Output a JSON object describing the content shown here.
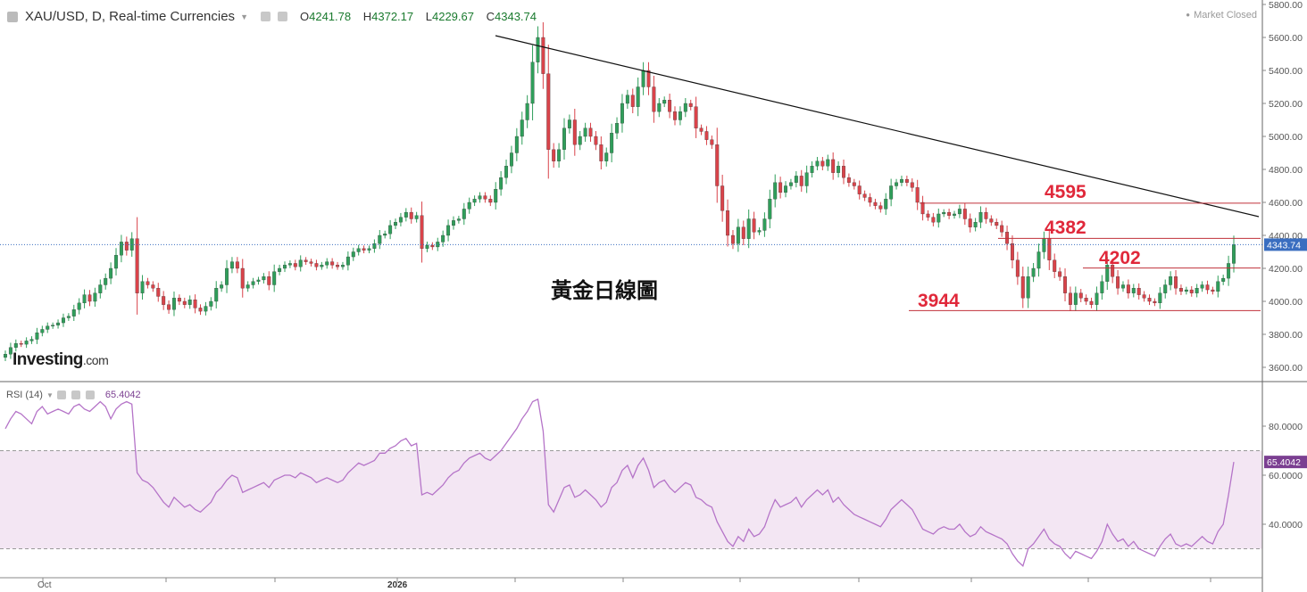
{
  "header": {
    "symbol": "XAU/USD, D, Real-time Currencies",
    "dropdown_icon": "chevron-down-icon",
    "open_label": "O",
    "open": "4241.78",
    "high_label": "H",
    "high": "4372.17",
    "low_label": "L",
    "low": "4229.67",
    "close_label": "C",
    "close": "4343.74"
  },
  "market_status": "Market Closed",
  "watermark": {
    "brand": "Investing",
    "suffix": ".com"
  },
  "annotation_title": "黃金日線圖",
  "levels": [
    {
      "label": "4595",
      "value": 4595
    },
    {
      "label": "4382",
      "value": 4382
    },
    {
      "label": "4202",
      "value": 4202
    },
    {
      "label": "3944",
      "value": 3944
    }
  ],
  "last_price_label": "4343.74",
  "rsi": {
    "label": "RSI (14)",
    "value": "65.4042",
    "last_label": "65.4042"
  },
  "colors": {
    "up": "#2f9e5a",
    "down": "#d9434a",
    "rsi_line": "#b574c8",
    "rsi_band": "#f3e6f3",
    "level_text": "#e0283a",
    "price_line": "#3a6ec0"
  },
  "chart_data": [
    {
      "type": "candlestick",
      "title": "XAU/USD, D, Real-time Currencies",
      "ylim": [
        3500,
        5850
      ],
      "yticks": [
        3600,
        3800,
        4000,
        4200,
        4400,
        4600,
        4800,
        5000,
        5200,
        5400,
        5600,
        5800
      ],
      "ytick_labels": [
        "3600.00",
        "3800.00",
        "4000.00",
        "4200.00",
        "4400.00",
        "4600.00",
        "4800.00",
        "5000.00",
        "5200.00",
        "5400.00",
        "5600.00",
        "5800.00"
      ],
      "xtick_labels": [
        "Oct",
        "2026"
      ],
      "closes": [
        3680,
        3720,
        3745,
        3740,
        3760,
        3770,
        3810,
        3830,
        3850,
        3855,
        3870,
        3900,
        3910,
        3950,
        3990,
        4040,
        4000,
        4050,
        4100,
        4140,
        4200,
        4280,
        4360,
        4310,
        4380,
        4050,
        4120,
        4100,
        4080,
        4030,
        3980,
        3950,
        4020,
        4000,
        3980,
        4010,
        3960,
        3940,
        3970,
        4000,
        4080,
        4100,
        4200,
        4240,
        4200,
        4080,
        4100,
        4120,
        4130,
        4150,
        4100,
        4180,
        4200,
        4220,
        4230,
        4210,
        4250,
        4240,
        4230,
        4210,
        4220,
        4240,
        4220,
        4210,
        4220,
        4270,
        4300,
        4320,
        4310,
        4320,
        4350,
        4400,
        4410,
        4460,
        4480,
        4510,
        4540,
        4500,
        4520,
        4320,
        4340,
        4330,
        4360,
        4400,
        4460,
        4490,
        4500,
        4560,
        4600,
        4620,
        4640,
        4620,
        4600,
        4680,
        4750,
        4820,
        4900,
        5000,
        5100,
        5200,
        5450,
        5600,
        5380,
        4920,
        4850,
        4920,
        5050,
        5100,
        4950,
        5000,
        5050,
        5000,
        4950,
        4850,
        4900,
        5020,
        5080,
        5200,
        5250,
        5180,
        5300,
        5400,
        5300,
        5150,
        5200,
        5220,
        5150,
        5100,
        5150,
        5200,
        5180,
        5050,
        5030,
        4980,
        4950,
        4700,
        4550,
        4400,
        4350,
        4450,
        4380,
        4500,
        4420,
        4430,
        4500,
        4620,
        4720,
        4660,
        4700,
        4720,
        4760,
        4700,
        4780,
        4820,
        4850,
        4820,
        4860,
        4780,
        4820,
        4750,
        4720,
        4700,
        4650,
        4630,
        4600,
        4580,
        4560,
        4620,
        4700,
        4720,
        4740,
        4720,
        4690,
        4600,
        4530,
        4510,
        4480,
        4530,
        4540,
        4520,
        4530,
        4560,
        4500,
        4450,
        4480,
        4540,
        4500,
        4480,
        4460,
        4420,
        4350,
        4250,
        4150,
        4020,
        4150,
        4200,
        4300,
        4380,
        4250,
        4180,
        4150,
        4050,
        3980,
        4050,
        4020,
        4000,
        3980,
        4050,
        4120,
        4220,
        4150,
        4080,
        4100,
        4050,
        4080,
        4040,
        4020,
        4000,
        3990,
        4050,
        4100,
        4150,
        4080,
        4060,
        4070,
        4050,
        4080,
        4100,
        4070,
        4060,
        4120,
        4140,
        4230,
        4343.74
      ]
    },
    {
      "type": "line",
      "title": "RSI (14)",
      "ylim": [
        20,
        95
      ],
      "yticks": [
        40,
        60,
        80
      ],
      "ytick_labels": [
        "40.0000",
        "60.0000",
        "80.0000"
      ],
      "band": [
        30,
        70
      ],
      "values": [
        79,
        83,
        86,
        85,
        83,
        81,
        86,
        88,
        85,
        86,
        87,
        86,
        85,
        88,
        89,
        87,
        86,
        88,
        90,
        88,
        83,
        87,
        89,
        90,
        89,
        61,
        58,
        57,
        55,
        52,
        49,
        47,
        51,
        49,
        47,
        48,
        46,
        45,
        47,
        49,
        53,
        55,
        58,
        60,
        59,
        53,
        54,
        55,
        56,
        57,
        55,
        58,
        59,
        60,
        60,
        59,
        61,
        60,
        59,
        57,
        58,
        59,
        58,
        57,
        58,
        61,
        63,
        65,
        64,
        65,
        66,
        69,
        69,
        71,
        72,
        74,
        75,
        72,
        73,
        52,
        53,
        52,
        54,
        56,
        59,
        61,
        62,
        65,
        67,
        68,
        69,
        67,
        66,
        68,
        70,
        73,
        76,
        79,
        83,
        86,
        90,
        91,
        78,
        48,
        45,
        50,
        55,
        56,
        51,
        52,
        54,
        52,
        50,
        47,
        49,
        55,
        57,
        62,
        64,
        59,
        64,
        67,
        62,
        55,
        57,
        58,
        55,
        53,
        55,
        57,
        56,
        51,
        50,
        48,
        47,
        41,
        37,
        33,
        31,
        35,
        33,
        38,
        35,
        36,
        39,
        45,
        50,
        47,
        48,
        49,
        51,
        47,
        50,
        52,
        54,
        52,
        54,
        49,
        51,
        48,
        46,
        44,
        43,
        42,
        41,
        40,
        39,
        42,
        46,
        48,
        50,
        48,
        46,
        42,
        38,
        37,
        36,
        38,
        39,
        38,
        38,
        40,
        37,
        35,
        36,
        39,
        37,
        36,
        35,
        34,
        32,
        28,
        25,
        23,
        30,
        32,
        35,
        38,
        34,
        32,
        31,
        28,
        26,
        29,
        28,
        27,
        26,
        29,
        33,
        40,
        36,
        33,
        34,
        31,
        33,
        30,
        29,
        28,
        27,
        31,
        34,
        36,
        32,
        31,
        32,
        31,
        33,
        35,
        33,
        32,
        37,
        40,
        52,
        65.4042
      ]
    }
  ]
}
